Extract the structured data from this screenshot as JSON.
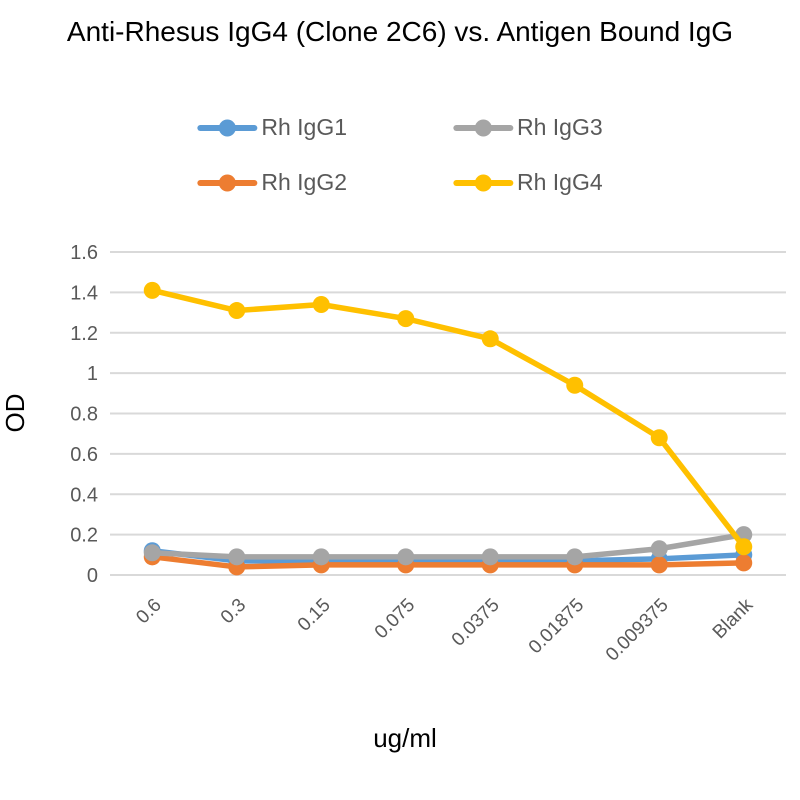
{
  "chart_data": {
    "type": "line",
    "title": "Anti-Rhesus IgG4 (Clone 2C6) vs. Antigen Bound IgG",
    "xlabel": "ug/ml",
    "ylabel": "OD",
    "categories": [
      "0.6",
      "0.3",
      "0.15",
      "0.075",
      "0.0375",
      "0.01875",
      "0.009375",
      "Blank"
    ],
    "series": [
      {
        "name": "Rh IgG1",
        "color": "#5B9BD5",
        "values": [
          0.12,
          0.07,
          0.07,
          0.07,
          0.07,
          0.07,
          0.08,
          0.1
        ]
      },
      {
        "name": "Rh IgG2",
        "color": "#ED7D31",
        "values": [
          0.09,
          0.04,
          0.05,
          0.05,
          0.05,
          0.05,
          0.05,
          0.06
        ]
      },
      {
        "name": "Rh IgG3",
        "color": "#A5A5A5",
        "values": [
          0.11,
          0.09,
          0.09,
          0.09,
          0.09,
          0.09,
          0.13,
          0.2
        ]
      },
      {
        "name": "Rh IgG4",
        "color": "#FFC000",
        "values": [
          1.41,
          1.31,
          1.34,
          1.27,
          1.17,
          0.94,
          0.68,
          0.14
        ]
      }
    ],
    "ylim": [
      0,
      1.6
    ],
    "ytick_step": 0.2,
    "ytick_labels": [
      "0",
      "0.2",
      "0.4",
      "0.6",
      "0.8",
      "1",
      "1.2",
      "1.4",
      "1.6"
    ],
    "grid": true,
    "legend_position": "top",
    "colors": {
      "gridline": "#D9D9D9",
      "tick_label": "#595959",
      "legend_text": "#595959",
      "title_text": "#000000",
      "background": "#FFFFFF"
    }
  }
}
